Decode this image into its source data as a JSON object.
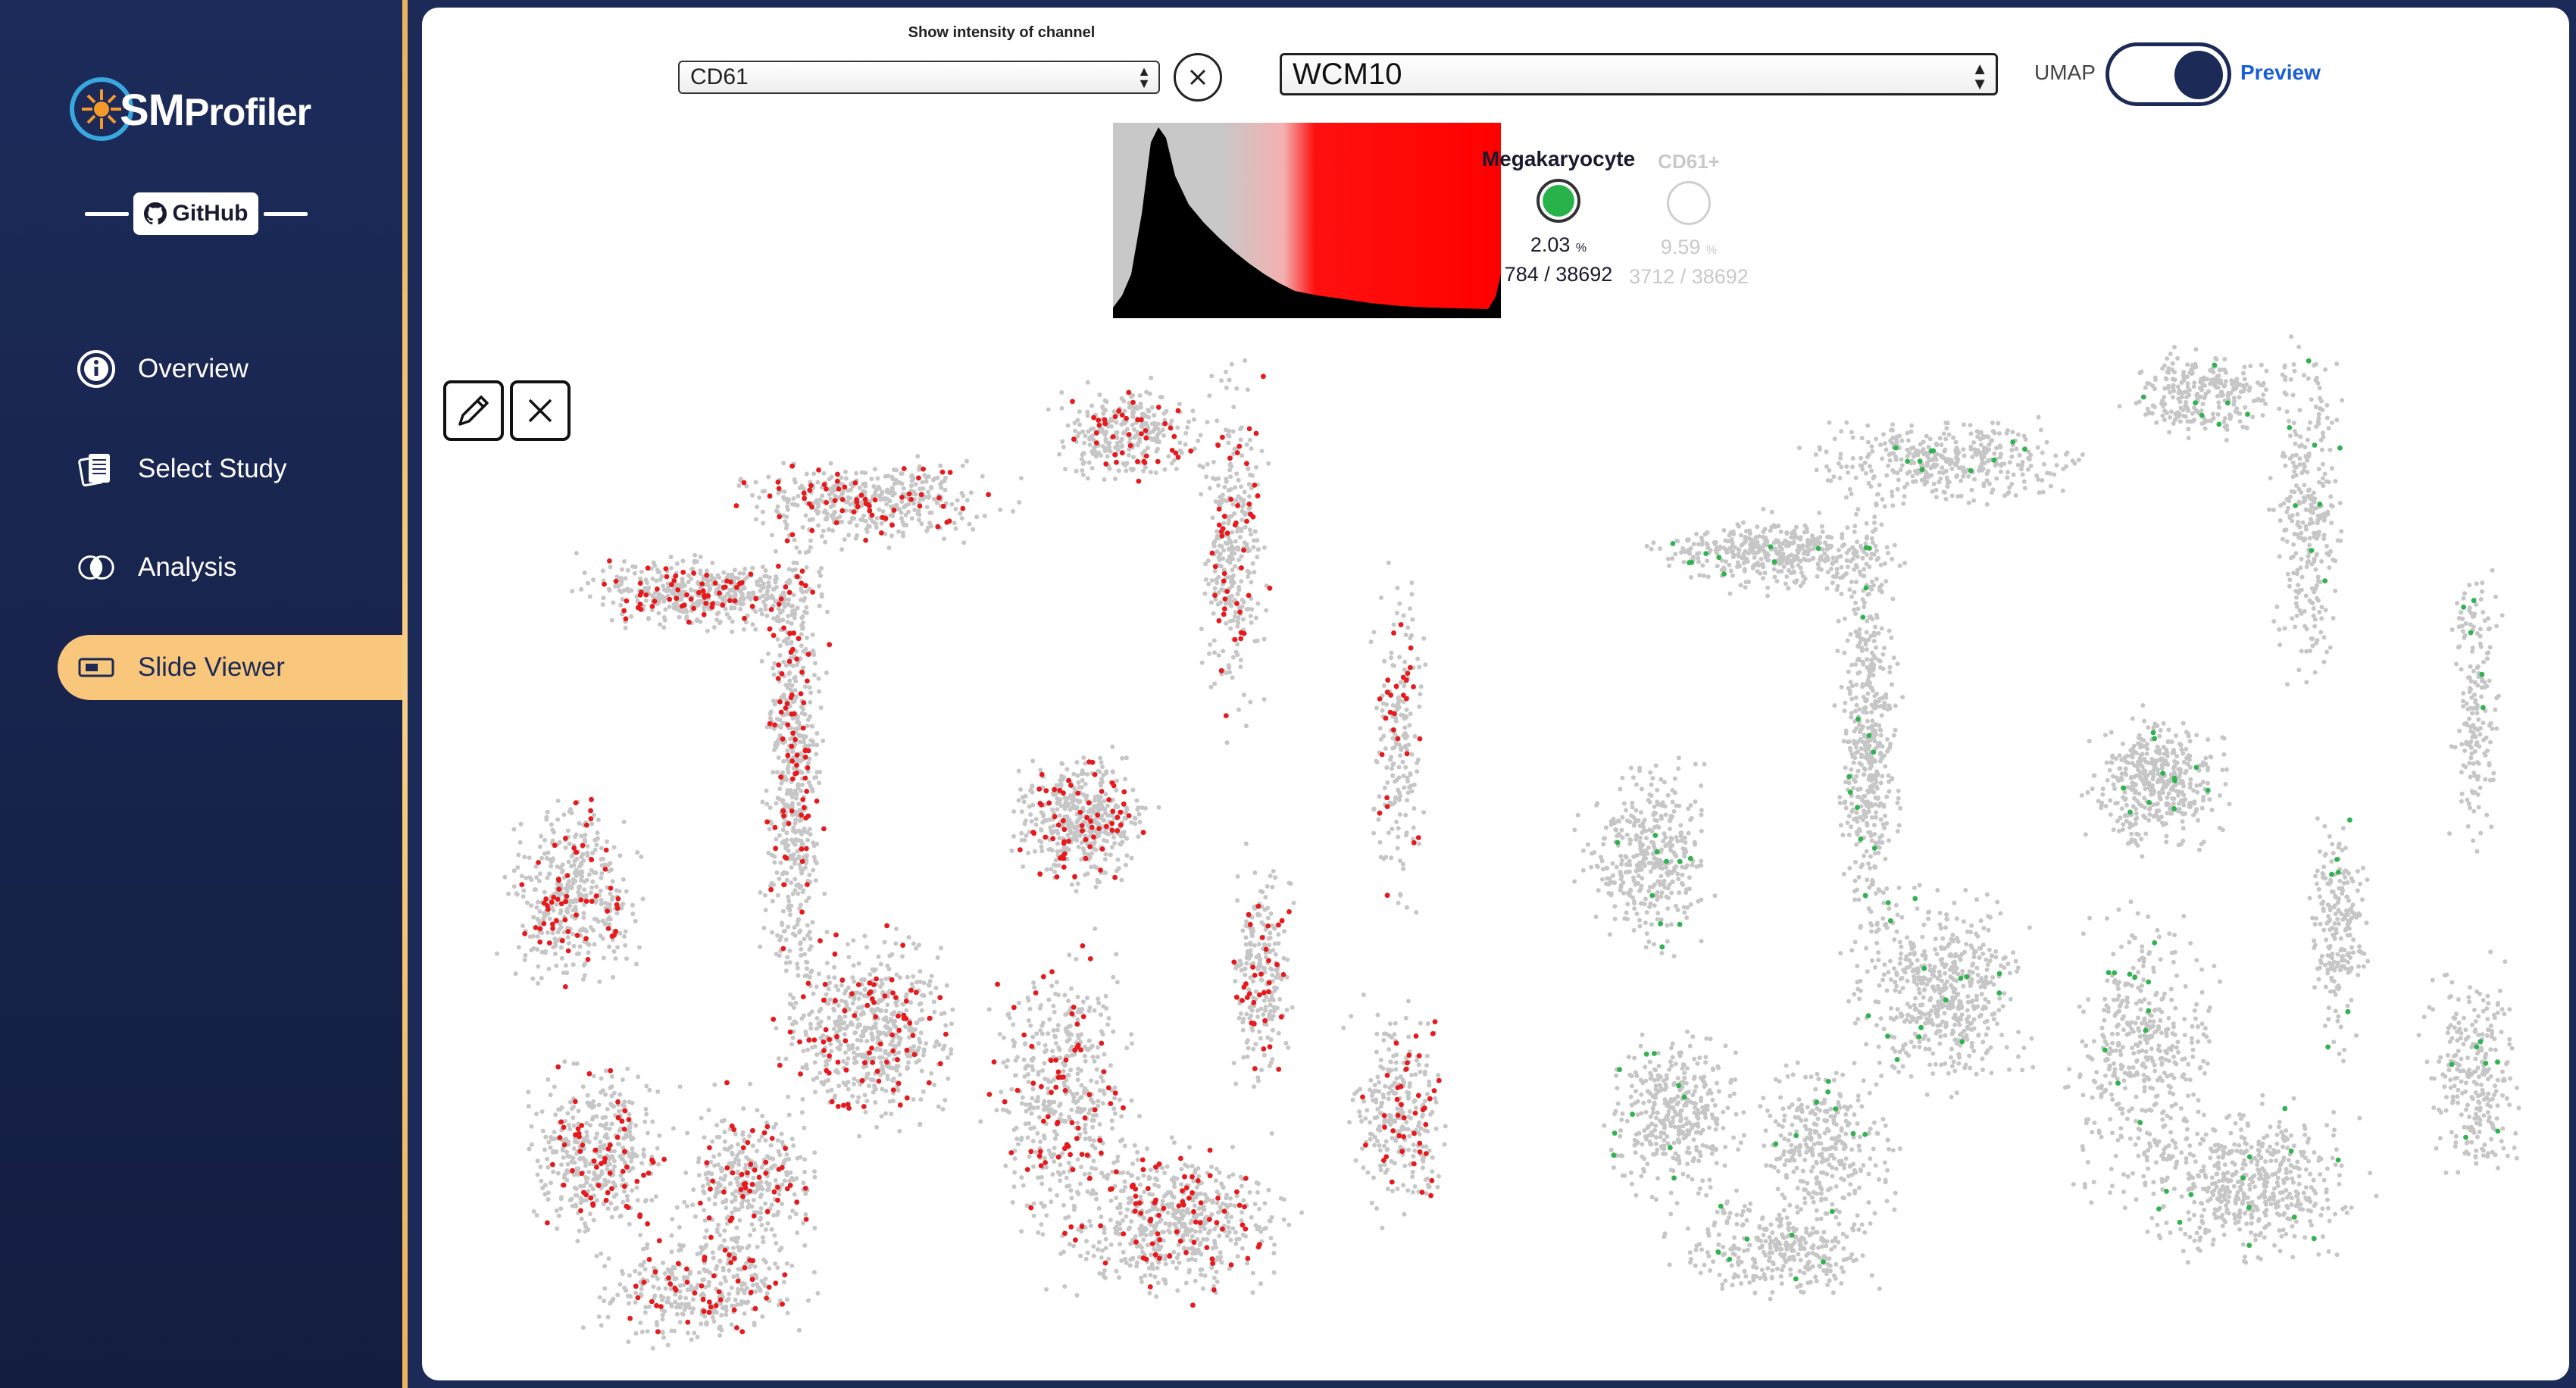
{
  "app": {
    "logo_text_bold": "SM",
    "logo_text_rest": "Profiler",
    "github_label": "GitHub",
    "accent_color": "#f8c77b",
    "brand_color": "#1b2a56"
  },
  "sidebar": {
    "items": [
      {
        "label": "Overview",
        "icon": "info-icon"
      },
      {
        "label": "Select Study",
        "icon": "documents-icon"
      },
      {
        "label": "Analysis",
        "icon": "venn-icon"
      },
      {
        "label": "Slide Viewer",
        "icon": "slide-icon",
        "active": true
      }
    ]
  },
  "controls": {
    "channel_label": "Show intensity of channel",
    "channel_value": "CD61",
    "sample_value": "WCM10",
    "umap_label": "UMAP",
    "preview_label": "Preview",
    "toggle_on": true
  },
  "legend": {
    "phenotypes": [
      {
        "name": "Megakaryocyte",
        "percent": "2.03",
        "unit": "%",
        "count": "784 / 38692",
        "color": "#27b24a",
        "selected": true
      },
      {
        "name": "CD61+",
        "percent": "9.59",
        "unit": "%",
        "count": "3712 / 38692",
        "color": "#c9c9c9",
        "selected": false
      }
    ]
  },
  "histogram": {
    "colors": {
      "low": "#c8c8c8",
      "high": "#ff0000",
      "curve": "#000000"
    }
  },
  "slides": {
    "left_highlight_color": "#e8191c",
    "right_highlight_color": "#2fb34e",
    "base_color": "#c6c6c6"
  }
}
